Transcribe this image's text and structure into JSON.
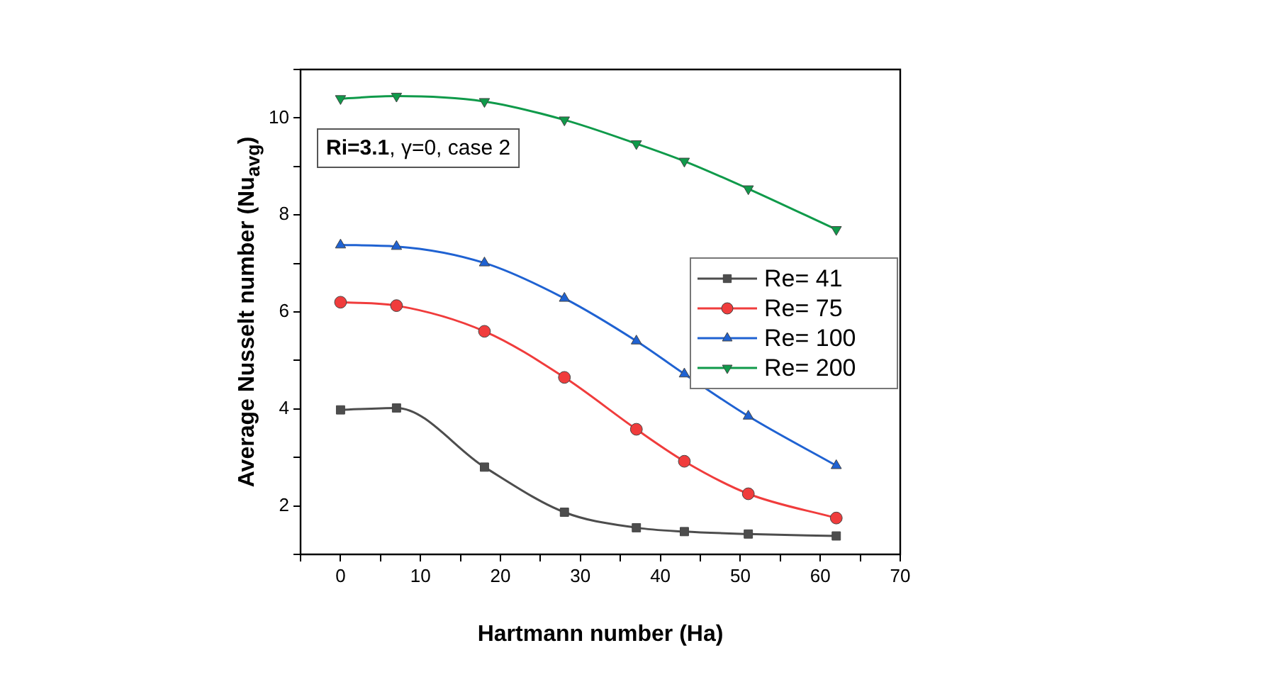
{
  "chart_data": {
    "type": "line",
    "xlabel": "Hartmann number (Ha)",
    "ylabel": "Average Nusselt number (Nu$_{avg}$)",
    "annotations": [
      "Ri=3.1, γ=0, case 2"
    ],
    "x": [
      0,
      7,
      18,
      28,
      37,
      43,
      51,
      62
    ],
    "series": [
      {
        "name": "Re= 41",
        "color": "#4d4d4d",
        "marker": "square",
        "values": [
          3.98,
          4.02,
          2.8,
          1.87,
          1.55,
          1.47,
          1.42,
          1.38
        ]
      },
      {
        "name": "Re= 75",
        "color": "#f03c3c",
        "marker": "circle",
        "values": [
          6.2,
          6.13,
          5.6,
          4.65,
          3.58,
          2.92,
          2.25,
          1.75
        ]
      },
      {
        "name": "Re= 100",
        "color": "#1f62d2",
        "marker": "triangle",
        "values": [
          7.38,
          7.35,
          7.01,
          6.28,
          5.4,
          4.72,
          3.85,
          2.83
        ]
      },
      {
        "name": "Re= 200",
        "color": "#0f9a4a",
        "marker": "triangle-down",
        "values": [
          10.4,
          10.45,
          10.34,
          9.96,
          9.47,
          9.11,
          8.54,
          7.7
        ]
      }
    ],
    "xlim": [
      -5,
      70
    ],
    "xticks": [
      {
        "value": -5,
        "label": null
      },
      0,
      {
        "value": 5,
        "label": null
      },
      10,
      {
        "value": 15,
        "label": null
      },
      20,
      {
        "value": 25,
        "label": null
      },
      30,
      {
        "value": 35,
        "label": null
      },
      40,
      {
        "value": 45,
        "label": null
      },
      50,
      {
        "value": 55,
        "label": null
      },
      60,
      {
        "value": 65,
        "label": null
      },
      70
    ],
    "ylim": [
      1,
      11
    ],
    "yticks": [
      {
        "value": 1,
        "label": null
      },
      2,
      {
        "value": 3,
        "label": null
      },
      4,
      {
        "value": 5,
        "label": null
      },
      6,
      {
        "value": 7,
        "label": null
      },
      8,
      {
        "value": 9,
        "label": null
      },
      10,
      {
        "value": 11,
        "label": null
      }
    ],
    "grid": false,
    "legend": "right",
    "line_style": "solid"
  }
}
